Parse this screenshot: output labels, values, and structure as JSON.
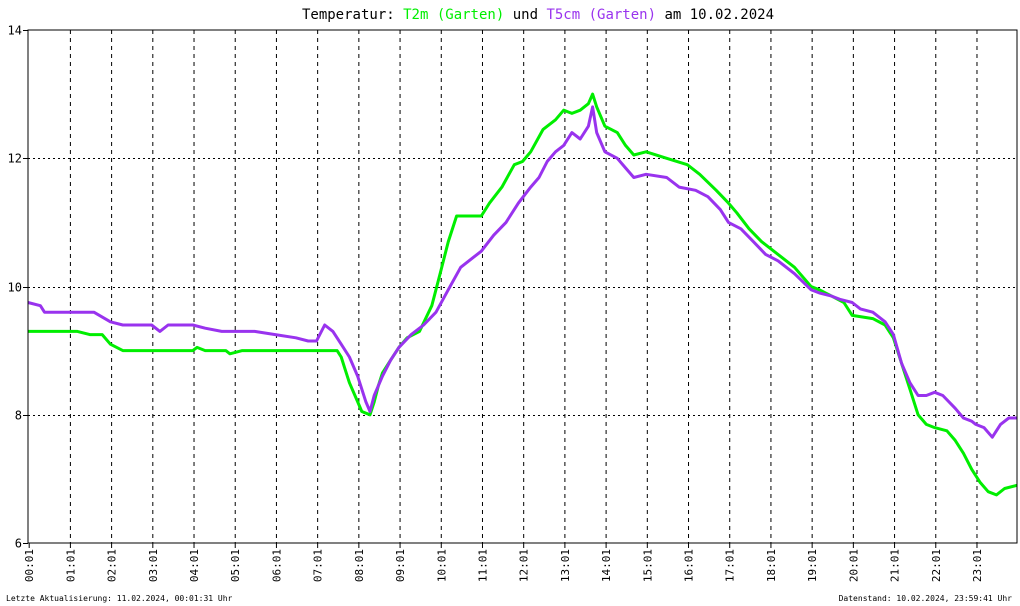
{
  "title": {
    "prefix": "Temperatur: ",
    "series1": "T2m (Garten)",
    "connector": " und ",
    "series2": "T5cm (Garten)",
    "suffix": " am 10.02.2024"
  },
  "footer": {
    "left": "Letzte Aktualisierung: 11.02.2024, 00:01:31 Uhr",
    "right": "Datenstand: 10.02.2024, 23:59:41 Uhr"
  },
  "colors": {
    "t2m": "#00ee00",
    "t5cm": "#9933ee",
    "grid": "#000000",
    "text": "#000000",
    "title_text": "#000000"
  },
  "chart_data": {
    "type": "line",
    "title": "Temperatur: T2m (Garten) und T5cm (Garten) am 10.02.2024",
    "xlabel": "",
    "ylabel": "",
    "xlim": [
      0,
      24
    ],
    "ylim": [
      6,
      14
    ],
    "x_ticks": [
      "00:01",
      "01:01",
      "02:01",
      "03:01",
      "04:01",
      "05:01",
      "06:01",
      "07:01",
      "08:01",
      "09:01",
      "10:01",
      "11:01",
      "12:01",
      "13:01",
      "14:01",
      "15:01",
      "16:01",
      "17:01",
      "18:01",
      "19:01",
      "20:01",
      "21:01",
      "22:01",
      "23:01"
    ],
    "y_ticks": [
      6,
      8,
      10,
      12,
      14
    ],
    "grid": true,
    "series": [
      {
        "name": "T2m (Garten)",
        "color": "#00ee00",
        "points": [
          [
            0,
            9.3
          ],
          [
            1.2,
            9.3
          ],
          [
            1.5,
            9.25
          ],
          [
            1.8,
            9.25
          ],
          [
            2.0,
            9.1
          ],
          [
            2.3,
            9.0
          ],
          [
            3.0,
            9.0
          ],
          [
            4.0,
            9.0
          ],
          [
            4.1,
            9.05
          ],
          [
            4.3,
            9.0
          ],
          [
            4.8,
            9.0
          ],
          [
            4.9,
            8.95
          ],
          [
            5.2,
            9.0
          ],
          [
            6.0,
            9.0
          ],
          [
            7.0,
            9.0
          ],
          [
            7.3,
            9.0
          ],
          [
            7.5,
            9.0
          ],
          [
            7.6,
            8.9
          ],
          [
            7.7,
            8.7
          ],
          [
            7.8,
            8.5
          ],
          [
            8.0,
            8.2
          ],
          [
            8.1,
            8.05
          ],
          [
            8.3,
            8.0
          ],
          [
            8.4,
            8.2
          ],
          [
            8.5,
            8.45
          ],
          [
            8.6,
            8.65
          ],
          [
            8.8,
            8.85
          ],
          [
            9.0,
            9.05
          ],
          [
            9.2,
            9.2
          ],
          [
            9.5,
            9.3
          ],
          [
            9.8,
            9.7
          ],
          [
            10.0,
            10.2
          ],
          [
            10.2,
            10.7
          ],
          [
            10.4,
            11.1
          ],
          [
            11.0,
            11.1
          ],
          [
            11.2,
            11.3
          ],
          [
            11.5,
            11.55
          ],
          [
            11.8,
            11.9
          ],
          [
            12.0,
            11.95
          ],
          [
            12.2,
            12.1
          ],
          [
            12.5,
            12.45
          ],
          [
            12.8,
            12.6
          ],
          [
            13.0,
            12.75
          ],
          [
            13.2,
            12.7
          ],
          [
            13.4,
            12.75
          ],
          [
            13.6,
            12.85
          ],
          [
            13.7,
            13.0
          ],
          [
            13.8,
            12.8
          ],
          [
            14.0,
            12.5
          ],
          [
            14.3,
            12.4
          ],
          [
            14.5,
            12.2
          ],
          [
            14.7,
            12.05
          ],
          [
            15.0,
            12.1
          ],
          [
            15.5,
            12.0
          ],
          [
            16.0,
            11.9
          ],
          [
            16.3,
            11.75
          ],
          [
            16.7,
            11.5
          ],
          [
            17.0,
            11.3
          ],
          [
            17.2,
            11.15
          ],
          [
            17.5,
            10.9
          ],
          [
            17.8,
            10.7
          ],
          [
            18.2,
            10.5
          ],
          [
            18.6,
            10.3
          ],
          [
            19.0,
            10.0
          ],
          [
            19.2,
            9.95
          ],
          [
            19.5,
            9.85
          ],
          [
            19.8,
            9.75
          ],
          [
            20.0,
            9.55
          ],
          [
            20.5,
            9.5
          ],
          [
            20.8,
            9.4
          ],
          [
            21.0,
            9.2
          ],
          [
            21.2,
            8.8
          ],
          [
            21.4,
            8.4
          ],
          [
            21.6,
            8.0
          ],
          [
            21.8,
            7.85
          ],
          [
            22.0,
            7.8
          ],
          [
            22.3,
            7.75
          ],
          [
            22.5,
            7.6
          ],
          [
            22.7,
            7.4
          ],
          [
            22.9,
            7.15
          ],
          [
            23.1,
            6.95
          ],
          [
            23.3,
            6.8
          ],
          [
            23.5,
            6.75
          ],
          [
            23.7,
            6.85
          ],
          [
            24.0,
            6.9
          ]
        ]
      },
      {
        "name": "T5cm (Garten)",
        "color": "#9933ee",
        "points": [
          [
            0,
            9.75
          ],
          [
            0.3,
            9.7
          ],
          [
            0.4,
            9.6
          ],
          [
            1.0,
            9.6
          ],
          [
            1.6,
            9.6
          ],
          [
            2.0,
            9.45
          ],
          [
            2.3,
            9.4
          ],
          [
            3.0,
            9.4
          ],
          [
            3.2,
            9.3
          ],
          [
            3.4,
            9.4
          ],
          [
            4.0,
            9.4
          ],
          [
            4.3,
            9.35
          ],
          [
            4.7,
            9.3
          ],
          [
            5.0,
            9.3
          ],
          [
            5.5,
            9.3
          ],
          [
            6.0,
            9.25
          ],
          [
            6.5,
            9.2
          ],
          [
            6.8,
            9.15
          ],
          [
            7.0,
            9.15
          ],
          [
            7.2,
            9.4
          ],
          [
            7.4,
            9.3
          ],
          [
            7.6,
            9.1
          ],
          [
            7.8,
            8.9
          ],
          [
            8.0,
            8.6
          ],
          [
            8.2,
            8.2
          ],
          [
            8.3,
            8.05
          ],
          [
            8.4,
            8.3
          ],
          [
            8.6,
            8.6
          ],
          [
            8.8,
            8.85
          ],
          [
            9.0,
            9.05
          ],
          [
            9.3,
            9.25
          ],
          [
            9.6,
            9.4
          ],
          [
            9.9,
            9.6
          ],
          [
            10.2,
            9.95
          ],
          [
            10.5,
            10.3
          ],
          [
            10.8,
            10.45
          ],
          [
            11.0,
            10.55
          ],
          [
            11.3,
            10.8
          ],
          [
            11.6,
            11.0
          ],
          [
            11.9,
            11.3
          ],
          [
            12.2,
            11.55
          ],
          [
            12.4,
            11.7
          ],
          [
            12.6,
            11.95
          ],
          [
            12.8,
            12.1
          ],
          [
            13.0,
            12.2
          ],
          [
            13.2,
            12.4
          ],
          [
            13.4,
            12.3
          ],
          [
            13.6,
            12.5
          ],
          [
            13.7,
            12.8
          ],
          [
            13.8,
            12.4
          ],
          [
            14.0,
            12.1
          ],
          [
            14.3,
            12.0
          ],
          [
            14.5,
            11.85
          ],
          [
            14.7,
            11.7
          ],
          [
            15.0,
            11.75
          ],
          [
            15.5,
            11.7
          ],
          [
            15.8,
            11.55
          ],
          [
            16.2,
            11.5
          ],
          [
            16.5,
            11.4
          ],
          [
            16.8,
            11.2
          ],
          [
            17.0,
            11.0
          ],
          [
            17.3,
            10.9
          ],
          [
            17.6,
            10.7
          ],
          [
            17.9,
            10.5
          ],
          [
            18.2,
            10.4
          ],
          [
            18.6,
            10.2
          ],
          [
            19.0,
            9.95
          ],
          [
            19.2,
            9.9
          ],
          [
            19.5,
            9.85
          ],
          [
            19.7,
            9.8
          ],
          [
            20.0,
            9.75
          ],
          [
            20.2,
            9.65
          ],
          [
            20.5,
            9.6
          ],
          [
            20.8,
            9.45
          ],
          [
            21.0,
            9.25
          ],
          [
            21.2,
            8.8
          ],
          [
            21.4,
            8.5
          ],
          [
            21.6,
            8.3
          ],
          [
            21.8,
            8.3
          ],
          [
            22.0,
            8.35
          ],
          [
            22.2,
            8.3
          ],
          [
            22.5,
            8.1
          ],
          [
            22.7,
            7.95
          ],
          [
            22.9,
            7.9
          ],
          [
            23.0,
            7.85
          ],
          [
            23.2,
            7.8
          ],
          [
            23.4,
            7.65
          ],
          [
            23.6,
            7.85
          ],
          [
            23.8,
            7.95
          ],
          [
            24.0,
            7.95
          ]
        ]
      }
    ]
  }
}
